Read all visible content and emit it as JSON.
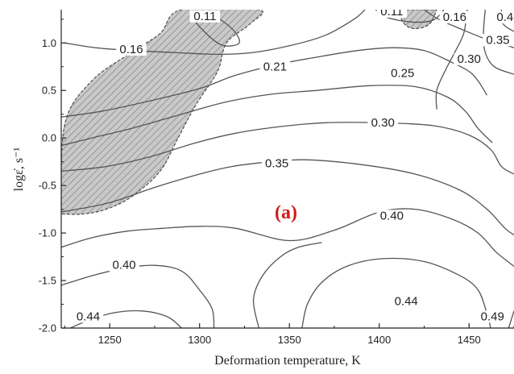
{
  "chart_data": {
    "type": "contour",
    "panel_label": "(a)",
    "xlabel": "Deformation temperature, K",
    "ylabel": "logε̇, s⁻¹",
    "xlim": [
      1223,
      1475
    ],
    "ylim": [
      -2.0,
      1.35
    ],
    "x_ticks": [
      "1250",
      "1300",
      "1350",
      "1400",
      "1450"
    ],
    "y_ticks": [
      "1.0",
      "0.5",
      "0.0",
      "-0.5",
      "-1.0",
      "-1.5",
      "-2.0"
    ],
    "hatched_regions": [
      {
        "name": "instability-left",
        "points": [
          [
            1223,
            -0.75
          ],
          [
            1225,
            0.15
          ],
          [
            1240,
            0.6
          ],
          [
            1262,
            0.9
          ],
          [
            1278,
            1.1
          ],
          [
            1290,
            1.35
          ],
          [
            1333,
            1.35
          ],
          [
            1328,
            1.2
          ],
          [
            1315,
            1.0
          ],
          [
            1310,
            0.7
          ],
          [
            1298,
            0.35
          ],
          [
            1288,
            0.0
          ],
          [
            1278,
            -0.35
          ],
          [
            1262,
            -0.62
          ],
          [
            1248,
            -0.75
          ],
          [
            1235,
            -0.8
          ],
          [
            1223,
            -0.8
          ]
        ]
      },
      {
        "name": "instability-top",
        "points": [
          [
            1410,
            1.35
          ],
          [
            1414,
            1.2
          ],
          [
            1420,
            1.15
          ],
          [
            1428,
            1.2
          ],
          [
            1432,
            1.35
          ]
        ]
      }
    ],
    "contours": [
      {
        "level": 0.11,
        "points": [
          [
            1295,
            1.3
          ],
          [
            1301,
            1.15
          ],
          [
            1312,
            0.98
          ],
          [
            1322,
            1.0
          ],
          [
            1318,
            1.15
          ],
          [
            1306,
            1.3
          ],
          [
            1295,
            1.3
          ]
        ]
      },
      {
        "level": 0.11,
        "points": [
          [
            1398,
            1.35
          ],
          [
            1404,
            1.27
          ],
          [
            1418,
            1.22
          ],
          [
            1430,
            1.24
          ],
          [
            1436,
            1.35
          ]
        ]
      },
      {
        "level": 0.16,
        "points": [
          [
            1225,
            1.0
          ],
          [
            1242,
            0.95
          ],
          [
            1262,
            0.92
          ],
          [
            1285,
            0.9
          ],
          [
            1310,
            0.88
          ],
          [
            1330,
            0.9
          ],
          [
            1350,
            0.97
          ],
          [
            1370,
            1.08
          ],
          [
            1386,
            1.25
          ],
          [
            1392,
            1.35
          ]
        ]
      },
      {
        "level": 0.16,
        "points": [
          [
            1425,
            1.35
          ],
          [
            1433,
            1.25
          ],
          [
            1445,
            1.15
          ],
          [
            1458,
            1.05
          ],
          [
            1470,
            0.98
          ],
          [
            1475,
            0.95
          ]
        ]
      },
      {
        "level": 0.21,
        "points": [
          [
            1223,
            0.22
          ],
          [
            1245,
            0.28
          ],
          [
            1270,
            0.38
          ],
          [
            1300,
            0.52
          ],
          [
            1320,
            0.66
          ],
          [
            1345,
            0.78
          ],
          [
            1365,
            0.85
          ],
          [
            1388,
            0.92
          ],
          [
            1408,
            0.95
          ],
          [
            1425,
            0.92
          ],
          [
            1440,
            0.8
          ],
          [
            1450,
            0.7
          ],
          [
            1455,
            0.6
          ],
          [
            1460,
            0.45
          ]
        ]
      },
      {
        "level": 0.25,
        "points": [
          [
            1223,
            -0.08
          ],
          [
            1240,
            0.0
          ],
          [
            1262,
            0.1
          ],
          [
            1290,
            0.25
          ],
          [
            1315,
            0.38
          ],
          [
            1340,
            0.46
          ],
          [
            1365,
            0.5
          ],
          [
            1395,
            0.55
          ],
          [
            1420,
            0.54
          ],
          [
            1438,
            0.43
          ],
          [
            1448,
            0.28
          ],
          [
            1455,
            0.1
          ],
          [
            1463,
            -0.05
          ]
        ]
      },
      {
        "level": 0.3,
        "points": [
          [
            1223,
            -0.35
          ],
          [
            1248,
            -0.3
          ],
          [
            1272,
            -0.2
          ],
          [
            1298,
            -0.05
          ],
          [
            1320,
            0.05
          ],
          [
            1345,
            0.12
          ],
          [
            1370,
            0.16
          ],
          [
            1400,
            0.16
          ],
          [
            1430,
            0.13
          ],
          [
            1450,
            0.03
          ],
          [
            1462,
            -0.12
          ],
          [
            1468,
            -0.3
          ],
          [
            1475,
            -0.38
          ]
        ]
      },
      {
        "level": 0.3,
        "points": [
          [
            1449,
            1.35
          ],
          [
            1447,
            1.1
          ],
          [
            1442,
            0.9
          ],
          [
            1437,
            0.72
          ],
          [
            1432,
            0.5
          ],
          [
            1432,
            0.3
          ]
        ]
      },
      {
        "level": 0.35,
        "points": [
          [
            1223,
            -0.78
          ],
          [
            1250,
            -0.68
          ],
          [
            1275,
            -0.52
          ],
          [
            1300,
            -0.38
          ],
          [
            1318,
            -0.3
          ],
          [
            1340,
            -0.25
          ],
          [
            1360,
            -0.23
          ],
          [
            1390,
            -0.28
          ],
          [
            1420,
            -0.38
          ],
          [
            1445,
            -0.55
          ],
          [
            1460,
            -0.75
          ],
          [
            1470,
            -0.95
          ],
          [
            1475,
            -1.02
          ]
        ]
      },
      {
        "level": 0.35,
        "points": [
          [
            1459,
            1.35
          ],
          [
            1458,
            1.1
          ],
          [
            1459,
            0.9
          ],
          [
            1464,
            0.75
          ],
          [
            1475,
            0.67
          ]
        ]
      },
      {
        "level": 0.4,
        "points": [
          [
            1223,
            -1.15
          ],
          [
            1240,
            -1.05
          ],
          [
            1260,
            -0.98
          ],
          [
            1280,
            -0.95
          ],
          [
            1300,
            -0.93
          ],
          [
            1320,
            -0.95
          ],
          [
            1350,
            -1.08
          ],
          [
            1375,
            -0.97
          ],
          [
            1400,
            -0.78
          ],
          [
            1420,
            -0.75
          ],
          [
            1440,
            -0.85
          ],
          [
            1455,
            -1.0
          ],
          [
            1465,
            -1.2
          ],
          [
            1475,
            -1.35
          ]
        ]
      },
      {
        "level": 0.4,
        "points": [
          [
            1223,
            -1.55
          ],
          [
            1240,
            -1.45
          ],
          [
            1258,
            -1.37
          ],
          [
            1275,
            -1.34
          ],
          [
            1290,
            -1.4
          ],
          [
            1300,
            -1.6
          ],
          [
            1307,
            -1.8
          ],
          [
            1308,
            -2.0
          ]
        ]
      },
      {
        "level": 0.4,
        "points": [
          [
            1468,
            1.35
          ],
          [
            1469,
            1.2
          ],
          [
            1475,
            1.12
          ]
        ]
      },
      {
        "level": 0.44,
        "points": [
          [
            1228,
            -2.0
          ],
          [
            1238,
            -1.92
          ],
          [
            1252,
            -1.84
          ],
          [
            1268,
            -1.82
          ],
          [
            1282,
            -1.88
          ],
          [
            1290,
            -2.0
          ]
        ]
      },
      {
        "level": 0.44,
        "points": [
          [
            1357,
            -2.0
          ],
          [
            1360,
            -1.75
          ],
          [
            1368,
            -1.52
          ],
          [
            1382,
            -1.35
          ],
          [
            1402,
            -1.27
          ],
          [
            1425,
            -1.3
          ],
          [
            1445,
            -1.45
          ],
          [
            1455,
            -1.6
          ],
          [
            1460,
            -1.85
          ],
          [
            1462,
            -2.0
          ]
        ]
      },
      {
        "level": 0.44,
        "points": [
          [
            1333,
            -2.0
          ],
          [
            1330,
            -1.7
          ],
          [
            1335,
            -1.45
          ],
          [
            1345,
            -1.25
          ],
          [
            1355,
            -1.15
          ],
          [
            1368,
            -1.1
          ]
        ]
      },
      {
        "level": 0.49,
        "points": [
          [
            1472,
            -2.0
          ],
          [
            1475,
            -1.82
          ]
        ]
      }
    ],
    "labels": [
      {
        "text": "0.11",
        "x": 1303,
        "y": 1.25
      },
      {
        "text": "0.11",
        "x": 1407,
        "y": 1.3
      },
      {
        "text": "0.16",
        "x": 1262,
        "y": 0.9
      },
      {
        "text": "0.16",
        "x": 1442,
        "y": 1.24
      },
      {
        "text": "0.21",
        "x": 1342,
        "y": 0.72
      },
      {
        "text": "0.25",
        "x": 1413,
        "y": 0.65
      },
      {
        "text": "0.30",
        "x": 1402,
        "y": 0.13
      },
      {
        "text": "0.30",
        "x": 1450,
        "y": 0.8
      },
      {
        "text": "0.35",
        "x": 1343,
        "y": -0.3
      },
      {
        "text": "0.35",
        "x": 1466,
        "y": 1.0
      },
      {
        "text": "0.4",
        "x": 1470,
        "y": 1.24
      },
      {
        "text": "0.40",
        "x": 1407,
        "y": -0.85
      },
      {
        "text": "0.40",
        "x": 1258,
        "y": -1.37
      },
      {
        "text": "0.44",
        "x": 1238,
        "y": -1.91
      },
      {
        "text": "0.44",
        "x": 1415,
        "y": -1.75
      },
      {
        "text": "0.49",
        "x": 1463,
        "y": -1.91
      }
    ],
    "colors": {
      "contour": "#555555",
      "hatch_fill": "#c9c9c9",
      "hatch_line": "#808080",
      "panel_label": "#d21a1a"
    },
    "grid": false
  }
}
